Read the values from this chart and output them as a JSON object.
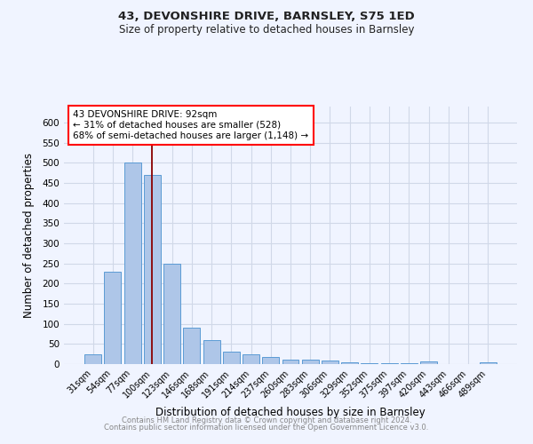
{
  "title1": "43, DEVONSHIRE DRIVE, BARNSLEY, S75 1ED",
  "title2": "Size of property relative to detached houses in Barnsley",
  "xlabel": "Distribution of detached houses by size in Barnsley",
  "ylabel": "Number of detached properties",
  "categories": [
    "31sqm",
    "54sqm",
    "77sqm",
    "100sqm",
    "123sqm",
    "146sqm",
    "168sqm",
    "191sqm",
    "214sqm",
    "237sqm",
    "260sqm",
    "283sqm",
    "306sqm",
    "329sqm",
    "352sqm",
    "375sqm",
    "397sqm",
    "420sqm",
    "443sqm",
    "466sqm",
    "489sqm"
  ],
  "values": [
    25,
    230,
    500,
    470,
    250,
    90,
    60,
    30,
    25,
    17,
    12,
    12,
    9,
    5,
    3,
    3,
    3,
    6,
    1,
    0,
    5
  ],
  "bar_color": "#aec6e8",
  "bar_edge_color": "#5b9bd5",
  "red_line_x": 3.0,
  "annotation_text": "43 DEVONSHIRE DRIVE: 92sqm\n← 31% of detached houses are smaller (528)\n68% of semi-detached houses are larger (1,148) →",
  "annotation_box_color": "white",
  "annotation_box_edge": "red",
  "footer1": "Contains HM Land Registry data © Crown copyright and database right 2024.",
  "footer2": "Contains public sector information licensed under the Open Government Licence v3.0.",
  "bg_color": "#f0f4ff",
  "grid_color": "#d0d8e8",
  "ylim": [
    0,
    640
  ],
  "yticks": [
    0,
    50,
    100,
    150,
    200,
    250,
    300,
    350,
    400,
    450,
    500,
    550,
    600
  ]
}
